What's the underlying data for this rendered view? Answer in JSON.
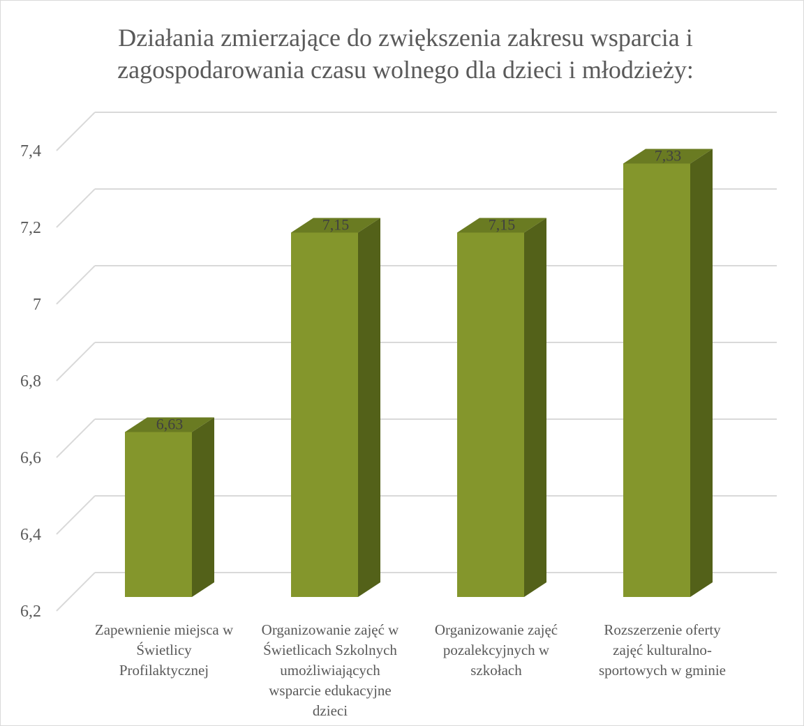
{
  "chart_data": {
    "type": "bar",
    "title_lines": [
      "Działania zmierzające do zwiększenia zakresu wsparcia i",
      "zagospodarowania czasu wolnego dla dzieci i młodzieży:"
    ],
    "categories": [
      [
        "Zapewnienie miejsca w",
        "Świetlicy",
        "Profilaktycznej"
      ],
      [
        "Organizowanie zajęć w",
        "Świetlicach Szkolnych",
        "umożliwiających",
        "wsparcie edukacyjne",
        "dzieci"
      ],
      [
        "Organizowanie zajęć",
        "pozalekcyjnych w",
        "szkołach"
      ],
      [
        "Rozszerzenie oferty",
        "zajęć kulturalno-",
        "sportowych w gminie"
      ]
    ],
    "values": [
      6.63,
      7.15,
      7.15,
      7.33
    ],
    "data_labels": [
      "6,63",
      "7,15",
      "7,15",
      "7,33"
    ],
    "y_ticks": [
      "6,2",
      "6,4",
      "6,6",
      "6,8",
      "7",
      "7,2",
      "7,4"
    ],
    "ylim": [
      6.2,
      7.4
    ],
    "grid": true,
    "three_d": true,
    "colors": {
      "bar_front": "#84962c",
      "bar_side": "#536119",
      "bar_top": "#6a7b22",
      "grid": "#d9d9d9",
      "text": "#595959"
    }
  }
}
